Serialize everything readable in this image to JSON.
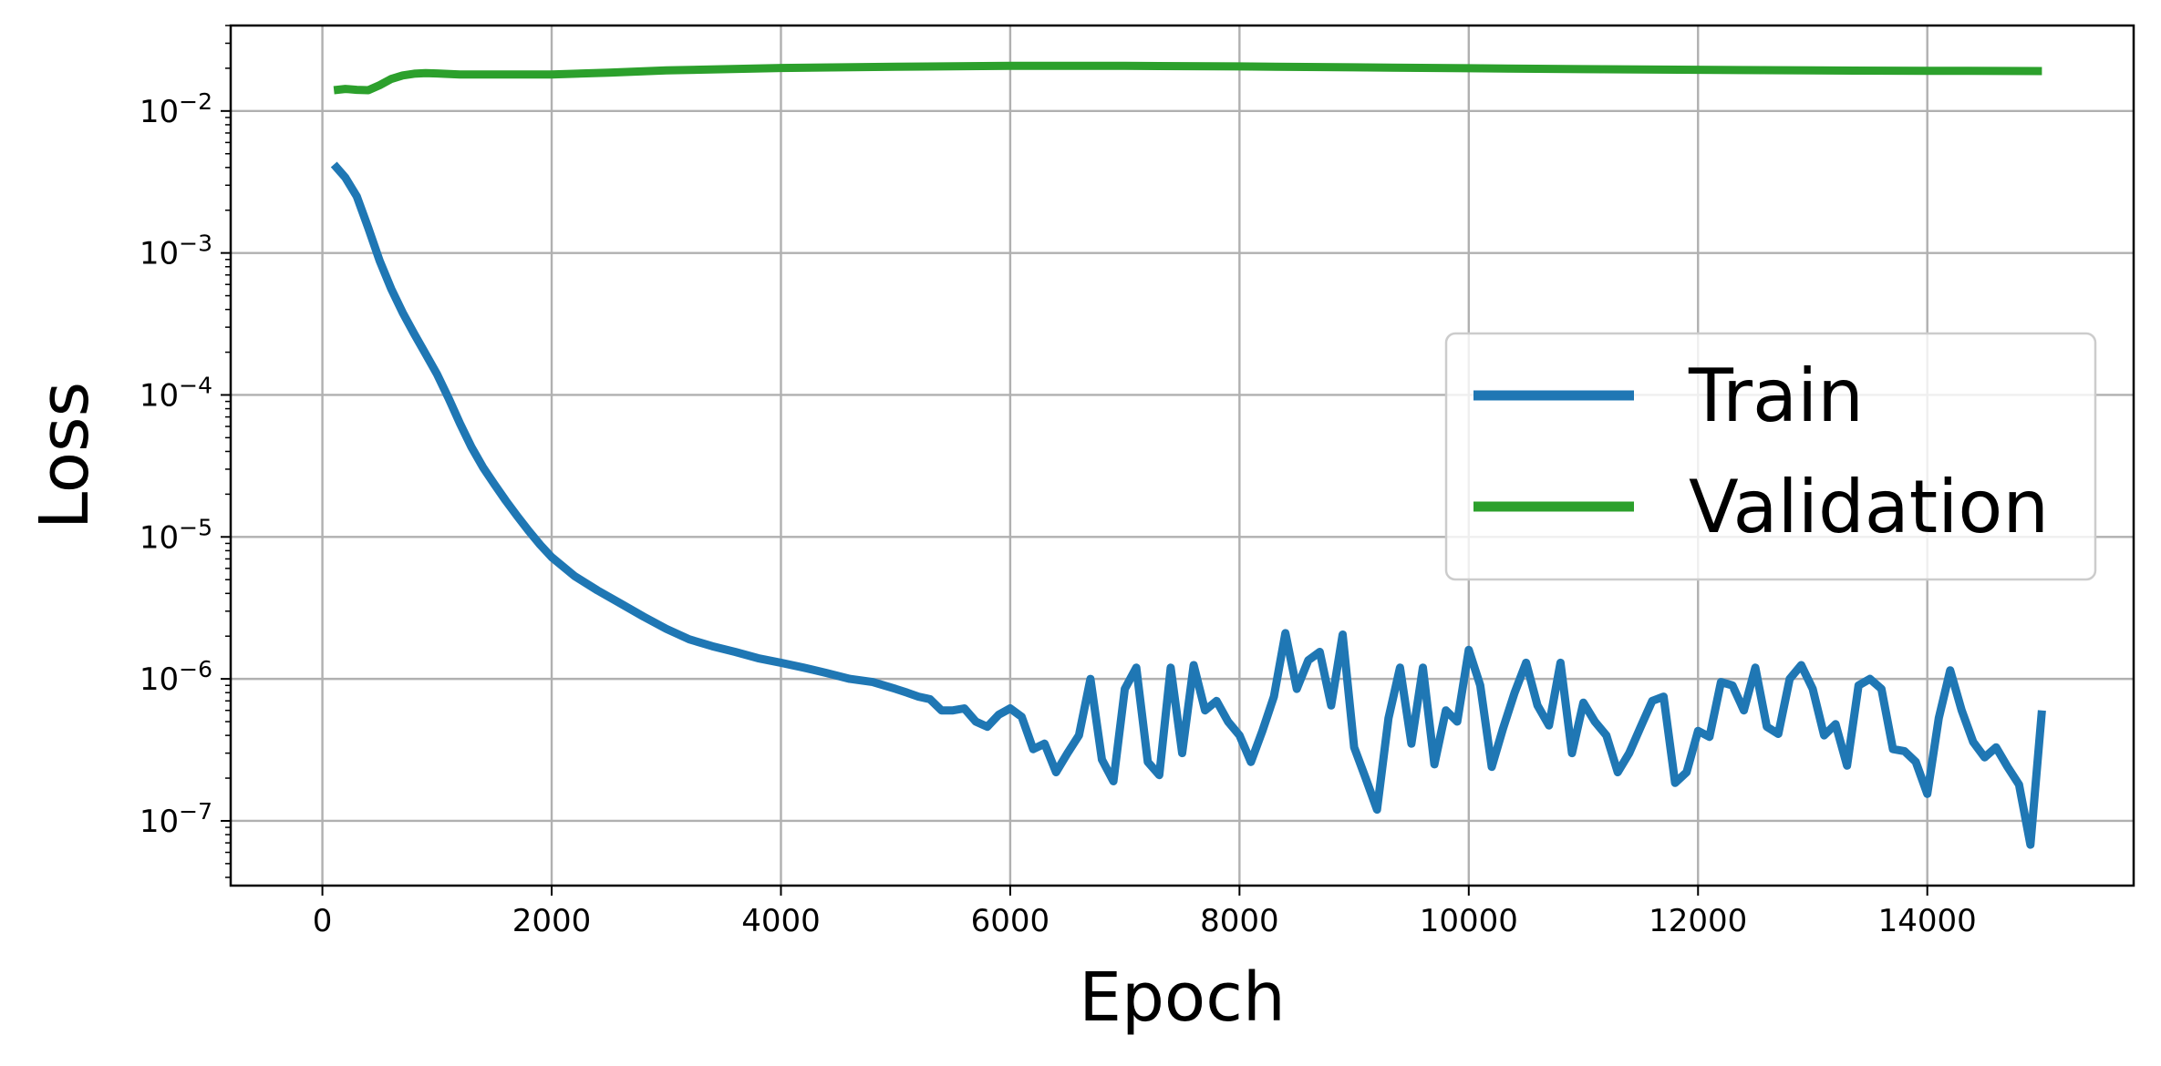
{
  "chart_data": {
    "type": "line",
    "title": "",
    "xlabel": "Epoch",
    "ylabel": "Loss",
    "xlim": [
      -800,
      15800
    ],
    "ylim": [
      3.5e-08,
      0.04
    ],
    "yscale": "log",
    "grid": true,
    "legend_position": "center-right",
    "x_ticks": [
      0,
      2000,
      4000,
      6000,
      8000,
      10000,
      12000,
      14000
    ],
    "x_tick_labels": [
      "0",
      "2000",
      "4000",
      "6000",
      "8000",
      "10000",
      "12000",
      "14000"
    ],
    "y_ticks": [
      1e-07,
      1e-06,
      1e-05,
      0.0001,
      0.001,
      0.01
    ],
    "y_tick_labels": [
      {
        "base": "10",
        "exp": "−7"
      },
      {
        "base": "10",
        "exp": "−6"
      },
      {
        "base": "10",
        "exp": "−5"
      },
      {
        "base": "10",
        "exp": "−4"
      },
      {
        "base": "10",
        "exp": "−3"
      },
      {
        "base": "10",
        "exp": "−2"
      }
    ],
    "series": [
      {
        "name": "Train",
        "color": "#1f77b4",
        "x": [
          100,
          200,
          300,
          400,
          500,
          600,
          700,
          800,
          900,
          1000,
          1100,
          1200,
          1300,
          1400,
          1500,
          1600,
          1700,
          1800,
          1900,
          2000,
          2200,
          2400,
          2600,
          2800,
          3000,
          3200,
          3400,
          3600,
          3800,
          4000,
          4200,
          4400,
          4600,
          4800,
          5000,
          5100,
          5200,
          5300,
          5400,
          5500,
          5600,
          5700,
          5800,
          5900,
          6000,
          6100,
          6200,
          6300,
          6400,
          6500,
          6600,
          6700,
          6800,
          6900,
          7000,
          7100,
          7200,
          7300,
          7400,
          7500,
          7600,
          7700,
          7800,
          7900,
          8000,
          8100,
          8200,
          8300,
          8400,
          8500,
          8600,
          8700,
          8800,
          8900,
          9000,
          9100,
          9200,
          9300,
          9400,
          9500,
          9600,
          9700,
          9800,
          9900,
          10000,
          10100,
          10200,
          10300,
          10400,
          10500,
          10600,
          10700,
          10800,
          10900,
          11000,
          11100,
          11200,
          11300,
          11400,
          11500,
          11600,
          11700,
          11800,
          11900,
          12000,
          12100,
          12200,
          12300,
          12400,
          12500,
          12600,
          12700,
          12800,
          12900,
          13000,
          13100,
          13200,
          13300,
          13400,
          13500,
          13600,
          13700,
          13800,
          13900,
          14000,
          14100,
          14200,
          14300,
          14400,
          14500,
          14600,
          14700,
          14800,
          14900,
          15000
        ],
        "y": [
          0.0042,
          0.0034,
          0.0025,
          0.0015,
          0.00088,
          0.00056,
          0.00038,
          0.00027,
          0.000195,
          0.00014,
          9.5e-05,
          6.3e-05,
          4.3e-05,
          3.1e-05,
          2.35e-05,
          1.8e-05,
          1.4e-05,
          1.1e-05,
          8.8e-06,
          7.2e-06,
          5.3e-06,
          4.2e-06,
          3.4e-06,
          2.75e-06,
          2.25e-06,
          1.9e-06,
          1.7e-06,
          1.55e-06,
          1.4e-06,
          1.3e-06,
          1.2e-06,
          1.1e-06,
          1e-06,
          9.5e-07,
          8.5e-07,
          8e-07,
          7.5e-07,
          7.2e-07,
          6e-07,
          6e-07,
          6.2e-07,
          5e-07,
          4.6e-07,
          5.6e-07,
          6.2e-07,
          5.4e-07,
          3.2e-07,
          3.5e-07,
          2.2e-07,
          3e-07,
          4e-07,
          1e-06,
          2.7e-07,
          1.9e-07,
          8.5e-07,
          1.2e-06,
          2.6e-07,
          2.1e-07,
          1.2e-06,
          3e-07,
          1.25e-06,
          6e-07,
          7e-07,
          5e-07,
          4e-07,
          2.6e-07,
          4.3e-07,
          7.5e-07,
          2.1e-06,
          8.5e-07,
          1.35e-06,
          1.55e-06,
          6.5e-07,
          2.05e-06,
          3.3e-07,
          2e-07,
          1.2e-07,
          5.3e-07,
          1.2e-06,
          3.5e-07,
          1.2e-06,
          2.5e-07,
          6e-07,
          5e-07,
          1.6e-06,
          9e-07,
          2.4e-07,
          4.5e-07,
          8e-07,
          1.3e-06,
          6.5e-07,
          4.7e-07,
          1.3e-06,
          3e-07,
          6.8e-07,
          5e-07,
          4e-07,
          2.2e-07,
          3e-07,
          4.6e-07,
          7e-07,
          7.5e-07,
          1.85e-07,
          2.2e-07,
          4.3e-07,
          3.9e-07,
          9.5e-07,
          9e-07,
          6e-07,
          1.2e-06,
          4.6e-07,
          4.1e-07,
          1e-06,
          1.25e-06,
          8.5e-07,
          4e-07,
          4.8e-07,
          2.45e-07,
          9e-07,
          1e-06,
          8.5e-07,
          3.2e-07,
          3.1e-07,
          2.6e-07,
          1.55e-07,
          5.3e-07,
          1.15e-06,
          6e-07,
          3.6e-07,
          2.8e-07,
          3.3e-07,
          2.4e-07,
          1.8e-07,
          6.8e-08,
          6e-07
        ]
      },
      {
        "name": "Validation",
        "color": "#2ca02c",
        "x": [
          100,
          200,
          300,
          400,
          500,
          600,
          700,
          800,
          900,
          1000,
          1200,
          1500,
          2000,
          2500,
          3000,
          4000,
          5000,
          6000,
          7000,
          8000,
          9000,
          10000,
          11000,
          12000,
          13000,
          14000,
          15000
        ],
        "y": [
          0.014,
          0.0143,
          0.0141,
          0.014,
          0.0152,
          0.0168,
          0.0178,
          0.0183,
          0.0185,
          0.0184,
          0.0181,
          0.0181,
          0.0181,
          0.0186,
          0.0193,
          0.0201,
          0.0205,
          0.0208,
          0.0208,
          0.0206,
          0.0203,
          0.02,
          0.0197,
          0.0195,
          0.0193,
          0.0192,
          0.0191
        ]
      }
    ]
  }
}
